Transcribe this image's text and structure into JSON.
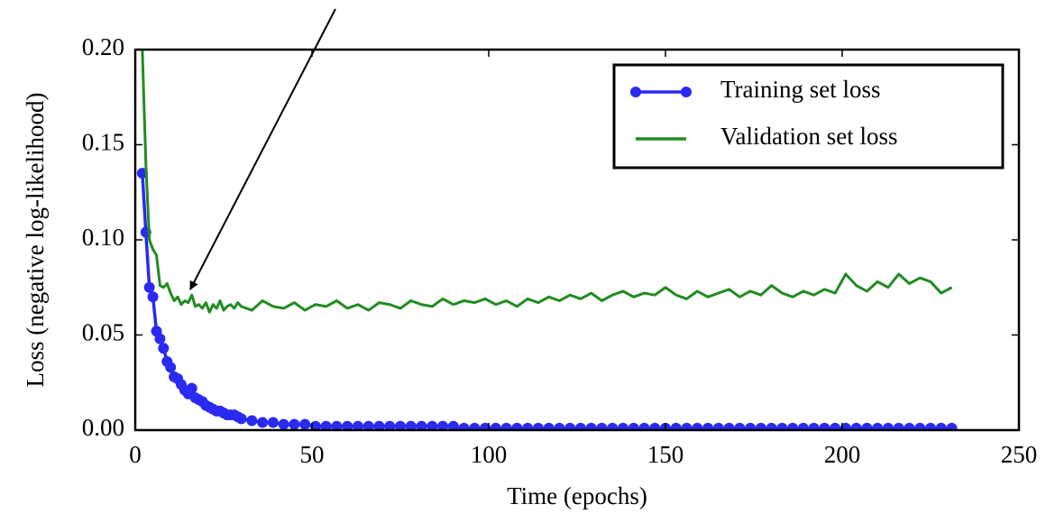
{
  "chart_data": {
    "type": "line",
    "xlabel": "Time (epochs)",
    "ylabel": "Loss (negative log-likelihood)",
    "x": [
      2,
      3,
      4,
      5,
      6,
      7,
      8,
      9,
      10,
      11,
      12,
      13,
      14,
      15,
      16,
      17,
      18,
      19,
      20,
      21,
      22,
      23,
      24,
      25,
      26,
      27,
      28,
      29,
      30,
      33,
      36,
      39,
      42,
      45,
      48,
      51,
      54,
      57,
      60,
      63,
      66,
      69,
      72,
      75,
      78,
      81,
      84,
      87,
      90,
      93,
      96,
      99,
      102,
      105,
      108,
      111,
      114,
      117,
      120,
      123,
      126,
      129,
      132,
      135,
      138,
      141,
      144,
      147,
      150,
      153,
      156,
      159,
      162,
      165,
      168,
      171,
      174,
      177,
      180,
      183,
      186,
      189,
      192,
      195,
      198,
      201,
      204,
      207,
      210,
      213,
      216,
      219,
      222,
      225,
      228,
      231
    ],
    "series": [
      {
        "name": "Training set loss",
        "color": "#2a2af0",
        "markers": true,
        "values": [
          0.135,
          0.104,
          0.075,
          0.07,
          0.052,
          0.048,
          0.043,
          0.036,
          0.033,
          0.028,
          0.027,
          0.024,
          0.021,
          0.019,
          0.022,
          0.017,
          0.016,
          0.015,
          0.013,
          0.012,
          0.011,
          0.01,
          0.01,
          0.009,
          0.008,
          0.008,
          0.008,
          0.007,
          0.006,
          0.005,
          0.004,
          0.004,
          0.003,
          0.003,
          0.003,
          0.002,
          0.002,
          0.002,
          0.002,
          0.002,
          0.002,
          0.002,
          0.002,
          0.002,
          0.002,
          0.002,
          0.002,
          0.002,
          0.002,
          0.001,
          0.001,
          0.001,
          0.001,
          0.001,
          0.001,
          0.001,
          0.001,
          0.001,
          0.001,
          0.001,
          0.001,
          0.001,
          0.001,
          0.001,
          0.001,
          0.001,
          0.001,
          0.001,
          0.001,
          0.001,
          0.001,
          0.001,
          0.001,
          0.001,
          0.001,
          0.001,
          0.001,
          0.001,
          0.001,
          0.001,
          0.001,
          0.001,
          0.001,
          0.001,
          0.001,
          0.001,
          0.001,
          0.001,
          0.001,
          0.001,
          0.001,
          0.001,
          0.001,
          0.001,
          0.001,
          0.001
        ]
      },
      {
        "name": "Validation set loss",
        "color": "#228b22",
        "markers": false,
        "values": [
          0.2,
          0.14,
          0.1,
          0.095,
          0.092,
          0.076,
          0.075,
          0.077,
          0.072,
          0.068,
          0.07,
          0.066,
          0.068,
          0.067,
          0.071,
          0.065,
          0.066,
          0.064,
          0.067,
          0.062,
          0.066,
          0.064,
          0.068,
          0.063,
          0.065,
          0.066,
          0.064,
          0.067,
          0.065,
          0.063,
          0.068,
          0.065,
          0.064,
          0.067,
          0.063,
          0.066,
          0.065,
          0.068,
          0.064,
          0.066,
          0.063,
          0.067,
          0.066,
          0.064,
          0.068,
          0.066,
          0.065,
          0.069,
          0.066,
          0.068,
          0.067,
          0.069,
          0.066,
          0.068,
          0.065,
          0.069,
          0.067,
          0.07,
          0.068,
          0.071,
          0.069,
          0.072,
          0.068,
          0.071,
          0.073,
          0.07,
          0.072,
          0.071,
          0.075,
          0.071,
          0.069,
          0.073,
          0.07,
          0.072,
          0.074,
          0.07,
          0.073,
          0.071,
          0.076,
          0.072,
          0.07,
          0.073,
          0.071,
          0.074,
          0.072,
          0.082,
          0.076,
          0.073,
          0.078,
          0.075,
          0.082,
          0.077,
          0.08,
          0.078,
          0.072,
          0.075
        ]
      }
    ],
    "xlim": [
      0,
      250
    ],
    "xticks": [
      0,
      50,
      100,
      150,
      200,
      250
    ],
    "ylim": [
      0,
      0.2
    ],
    "yticks": [
      {
        "value": 0,
        "label": "0.00"
      },
      {
        "value": 0.05,
        "label": "0.05"
      },
      {
        "value": 0.1,
        "label": "0.10"
      },
      {
        "value": 0.15,
        "label": "0.15"
      },
      {
        "value": 0.2,
        "label": "0.20"
      }
    ],
    "legend": "upper right"
  }
}
